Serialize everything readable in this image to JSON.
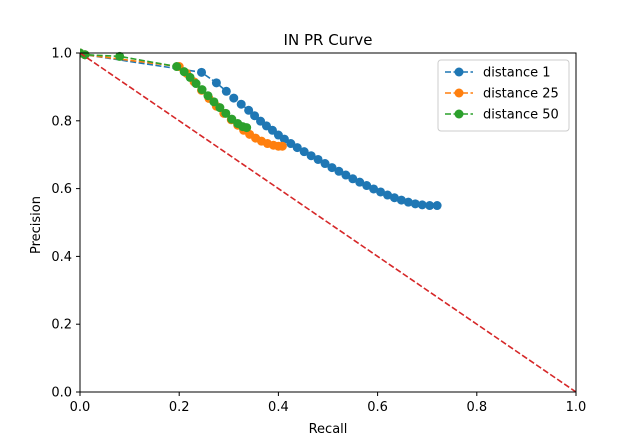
{
  "chart_data": {
    "type": "line",
    "title": "IN PR Curve",
    "xlabel": "Recall",
    "ylabel": "Precision",
    "xlim": [
      0,
      1
    ],
    "ylim": [
      0,
      1
    ],
    "xticks": [
      "0.0",
      "0.2",
      "0.4",
      "0.6",
      "0.8",
      "1.0"
    ],
    "yticks": [
      "0.0",
      "0.2",
      "0.4",
      "0.6",
      "0.8",
      "1.0"
    ],
    "grid": false,
    "legend_position": "top-right",
    "series": [
      {
        "name": "distance 1",
        "color": "#1f77b4",
        "style": "dashed-marker",
        "points": [
          [
            0.0,
            1.0
          ],
          [
            0.01,
            0.995
          ],
          [
            0.245,
            0.943
          ],
          [
            0.275,
            0.912
          ],
          [
            0.295,
            0.887
          ],
          [
            0.31,
            0.867
          ],
          [
            0.325,
            0.849
          ],
          [
            0.34,
            0.831
          ],
          [
            0.352,
            0.815
          ],
          [
            0.364,
            0.799
          ],
          [
            0.376,
            0.785
          ],
          [
            0.388,
            0.772
          ],
          [
            0.4,
            0.758
          ],
          [
            0.412,
            0.746
          ],
          [
            0.425,
            0.733
          ],
          [
            0.438,
            0.721
          ],
          [
            0.452,
            0.709
          ],
          [
            0.466,
            0.697
          ],
          [
            0.48,
            0.686
          ],
          [
            0.494,
            0.674
          ],
          [
            0.508,
            0.662
          ],
          [
            0.522,
            0.651
          ],
          [
            0.536,
            0.64
          ],
          [
            0.55,
            0.629
          ],
          [
            0.564,
            0.619
          ],
          [
            0.578,
            0.609
          ],
          [
            0.592,
            0.599
          ],
          [
            0.606,
            0.59
          ],
          [
            0.62,
            0.581
          ],
          [
            0.634,
            0.573
          ],
          [
            0.648,
            0.566
          ],
          [
            0.662,
            0.56
          ],
          [
            0.676,
            0.555
          ],
          [
            0.69,
            0.552
          ],
          [
            0.705,
            0.55
          ],
          [
            0.72,
            0.55
          ]
        ]
      },
      {
        "name": "distance 25",
        "color": "#ff7f0e",
        "style": "dashed-marker",
        "points": [
          [
            0.0,
            1.0
          ],
          [
            0.01,
            0.995
          ],
          [
            0.2,
            0.96
          ],
          [
            0.215,
            0.94
          ],
          [
            0.23,
            0.915
          ],
          [
            0.245,
            0.89
          ],
          [
            0.26,
            0.866
          ],
          [
            0.275,
            0.843
          ],
          [
            0.29,
            0.822
          ],
          [
            0.305,
            0.803
          ],
          [
            0.318,
            0.787
          ],
          [
            0.33,
            0.772
          ],
          [
            0.342,
            0.76
          ],
          [
            0.354,
            0.749
          ],
          [
            0.366,
            0.74
          ],
          [
            0.378,
            0.733
          ],
          [
            0.39,
            0.728
          ],
          [
            0.4,
            0.725
          ],
          [
            0.408,
            0.725
          ]
        ]
      },
      {
        "name": "distance 50",
        "color": "#2ca02c",
        "style": "dashed-marker",
        "points": [
          [
            0.0,
            1.0
          ],
          [
            0.01,
            0.995
          ],
          [
            0.08,
            0.99
          ],
          [
            0.195,
            0.96
          ],
          [
            0.21,
            0.945
          ],
          [
            0.222,
            0.928
          ],
          [
            0.234,
            0.91
          ],
          [
            0.246,
            0.892
          ],
          [
            0.258,
            0.874
          ],
          [
            0.27,
            0.856
          ],
          [
            0.282,
            0.839
          ],
          [
            0.294,
            0.822
          ],
          [
            0.306,
            0.805
          ],
          [
            0.318,
            0.792
          ],
          [
            0.328,
            0.783
          ],
          [
            0.336,
            0.78
          ]
        ]
      },
      {
        "name": "",
        "color": "#d62728",
        "style": "dashed",
        "points": [
          [
            0.0,
            1.0
          ],
          [
            1.0,
            0.0
          ]
        ]
      }
    ]
  }
}
